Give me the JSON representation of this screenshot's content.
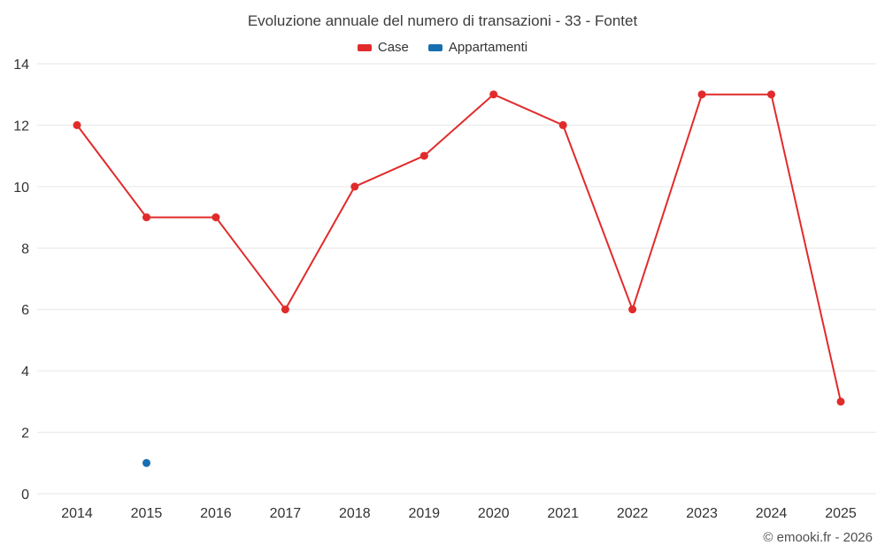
{
  "title": "Evoluzione annuale del numero di transazioni - 33 - Fontet",
  "legend": {
    "items": [
      {
        "label": "Case",
        "color": "#e12b2b"
      },
      {
        "label": "Appartamenti",
        "color": "#1670b0"
      }
    ]
  },
  "footer": {
    "credit": "© emooki.fr - 2026"
  },
  "chart_data": {
    "type": "line",
    "title": "Evoluzione annuale del numero di transazioni - 33 - Fontet",
    "x": [
      2014,
      2015,
      2016,
      2017,
      2018,
      2019,
      2020,
      2021,
      2022,
      2023,
      2024,
      2025
    ],
    "series": [
      {
        "name": "Case",
        "color": "#e12b2b",
        "values": [
          12,
          9,
          9,
          6,
          10,
          11,
          13,
          12,
          6,
          13,
          13,
          3
        ]
      },
      {
        "name": "Appartamenti",
        "color": "#1670b0",
        "values": [
          null,
          1,
          null,
          null,
          null,
          null,
          null,
          null,
          null,
          null,
          null,
          null
        ]
      }
    ],
    "xlabel": "",
    "ylabel": "",
    "ylim": [
      0,
      14
    ],
    "yticks": [
      0,
      2,
      4,
      6,
      8,
      10,
      12,
      14
    ],
    "grid": true,
    "legend_position": "top"
  }
}
